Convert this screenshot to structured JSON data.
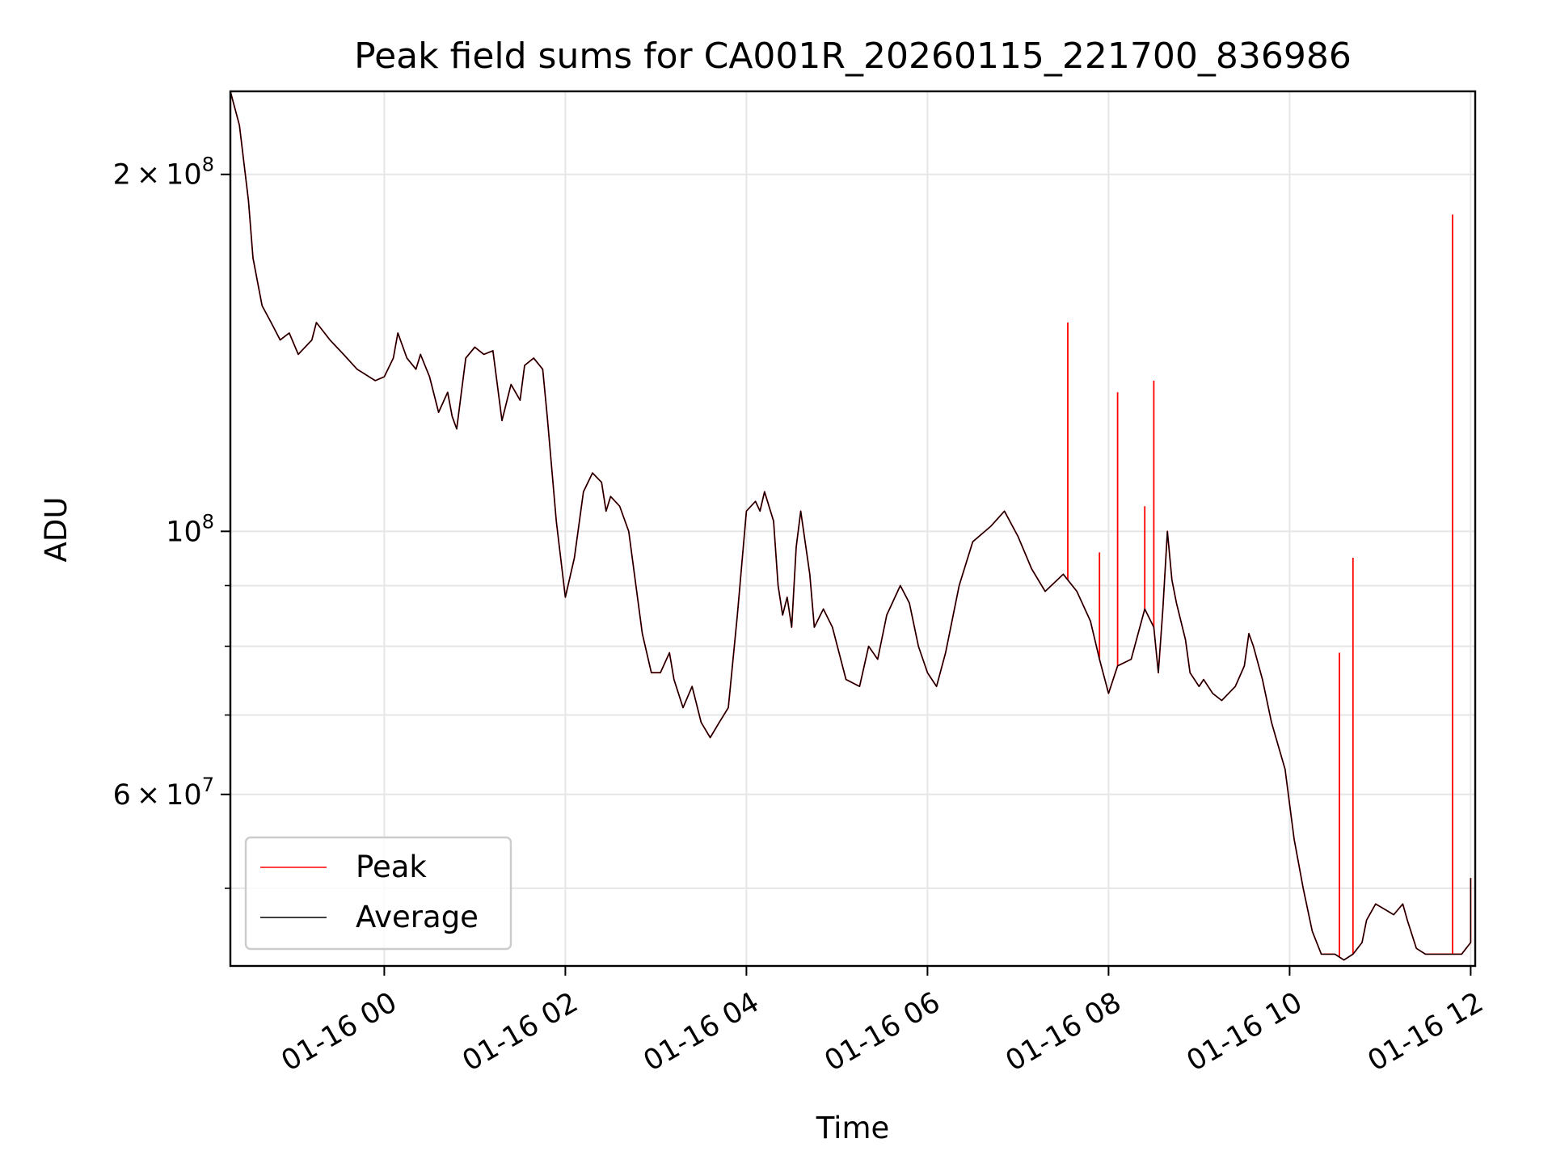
{
  "chart_data": {
    "type": "line",
    "title": "Peak field sums for CA001R_20260115_221700_836986",
    "xlabel": "Time",
    "ylabel": "ADU",
    "yscale": "log",
    "ylim": [
      43000000,
      235000000
    ],
    "xlim_hours": [
      -1.7,
      12.05
    ],
    "grid": true,
    "legend_position": "lower-left",
    "x_ticks": [
      {
        "label": "01-16 00",
        "hour": 0
      },
      {
        "label": "01-16 02",
        "hour": 2
      },
      {
        "label": "01-16 04",
        "hour": 4
      },
      {
        "label": "01-16 06",
        "hour": 6
      },
      {
        "label": "01-16 08",
        "hour": 8
      },
      {
        "label": "01-16 10",
        "hour": 10
      },
      {
        "label": "01-16 12",
        "hour": 12
      }
    ],
    "y_major_ticks": [
      {
        "base": "2",
        "exp": "8",
        "value": 200000000
      },
      {
        "base": "10",
        "exp": "8",
        "value": 100000000,
        "plain": true
      },
      {
        "base": "6",
        "exp": "7",
        "value": 60000000
      }
    ],
    "y_minor_values": [
      50000000,
      70000000,
      80000000,
      90000000
    ],
    "times_symbol": "×",
    "series": [
      {
        "name": "Average",
        "color": "#000000",
        "points": [
          [
            -1.7,
            235000000
          ],
          [
            -1.6,
            220000000
          ],
          [
            -1.5,
            190000000
          ],
          [
            -1.45,
            170000000
          ],
          [
            -1.35,
            155000000
          ],
          [
            -1.25,
            150000000
          ],
          [
            -1.15,
            145000000
          ],
          [
            -1.05,
            147000000
          ],
          [
            -0.95,
            141000000
          ],
          [
            -0.8,
            145000000
          ],
          [
            -0.75,
            150000000
          ],
          [
            -0.6,
            145000000
          ],
          [
            -0.45,
            141000000
          ],
          [
            -0.3,
            137000000
          ],
          [
            -0.1,
            134000000
          ],
          [
            0.0,
            135000000
          ],
          [
            0.1,
            140000000
          ],
          [
            0.15,
            147000000
          ],
          [
            0.25,
            140000000
          ],
          [
            0.35,
            137000000
          ],
          [
            0.4,
            141000000
          ],
          [
            0.5,
            135000000
          ],
          [
            0.6,
            126000000
          ],
          [
            0.7,
            131000000
          ],
          [
            0.75,
            125000000
          ],
          [
            0.8,
            122000000
          ],
          [
            0.9,
            140000000
          ],
          [
            1.0,
            143000000
          ],
          [
            1.1,
            141000000
          ],
          [
            1.2,
            142000000
          ],
          [
            1.3,
            124000000
          ],
          [
            1.4,
            133000000
          ],
          [
            1.5,
            129000000
          ],
          [
            1.55,
            138000000
          ],
          [
            1.65,
            140000000
          ],
          [
            1.75,
            137000000
          ],
          [
            1.8,
            125000000
          ],
          [
            1.9,
            102000000
          ],
          [
            2.0,
            88000000
          ],
          [
            2.1,
            95000000
          ],
          [
            2.2,
            108000000
          ],
          [
            2.3,
            112000000
          ],
          [
            2.4,
            110000000
          ],
          [
            2.45,
            104000000
          ],
          [
            2.5,
            107000000
          ],
          [
            2.6,
            105000000
          ],
          [
            2.7,
            100000000
          ],
          [
            2.85,
            82000000
          ],
          [
            2.95,
            76000000
          ],
          [
            3.05,
            76000000
          ],
          [
            3.15,
            79000000
          ],
          [
            3.2,
            75000000
          ],
          [
            3.3,
            71000000
          ],
          [
            3.4,
            74000000
          ],
          [
            3.5,
            69000000
          ],
          [
            3.6,
            67000000
          ],
          [
            3.7,
            69000000
          ],
          [
            3.8,
            71000000
          ],
          [
            3.9,
            85000000
          ],
          [
            4.0,
            104000000
          ],
          [
            4.1,
            106000000
          ],
          [
            4.15,
            104000000
          ],
          [
            4.2,
            108000000
          ],
          [
            4.3,
            102000000
          ],
          [
            4.35,
            90000000
          ],
          [
            4.4,
            85000000
          ],
          [
            4.45,
            88000000
          ],
          [
            4.5,
            83000000
          ],
          [
            4.55,
            97000000
          ],
          [
            4.6,
            104000000
          ],
          [
            4.7,
            92000000
          ],
          [
            4.75,
            83000000
          ],
          [
            4.85,
            86000000
          ],
          [
            4.95,
            83000000
          ],
          [
            5.1,
            75000000
          ],
          [
            5.25,
            74000000
          ],
          [
            5.35,
            80000000
          ],
          [
            5.45,
            78000000
          ],
          [
            5.55,
            85000000
          ],
          [
            5.7,
            90000000
          ],
          [
            5.8,
            87000000
          ],
          [
            5.9,
            80000000
          ],
          [
            6.0,
            76000000
          ],
          [
            6.1,
            74000000
          ],
          [
            6.2,
            79000000
          ],
          [
            6.35,
            90000000
          ],
          [
            6.5,
            98000000
          ],
          [
            6.7,
            101000000
          ],
          [
            6.85,
            104000000
          ],
          [
            7.0,
            99000000
          ],
          [
            7.15,
            93000000
          ],
          [
            7.3,
            89000000
          ],
          [
            7.5,
            92000000
          ],
          [
            7.65,
            89000000
          ],
          [
            7.8,
            84000000
          ],
          [
            7.9,
            78000000
          ],
          [
            8.0,
            73000000
          ],
          [
            8.1,
            77000000
          ],
          [
            8.25,
            78000000
          ],
          [
            8.4,
            86000000
          ],
          [
            8.5,
            83000000
          ],
          [
            8.55,
            76000000
          ],
          [
            8.6,
            86000000
          ],
          [
            8.65,
            100000000
          ],
          [
            8.7,
            91000000
          ],
          [
            8.75,
            87000000
          ],
          [
            8.85,
            81000000
          ],
          [
            8.9,
            76000000
          ],
          [
            9.0,
            74000000
          ],
          [
            9.05,
            75000000
          ],
          [
            9.15,
            73000000
          ],
          [
            9.25,
            72000000
          ],
          [
            9.4,
            74000000
          ],
          [
            9.5,
            77000000
          ],
          [
            9.55,
            82000000
          ],
          [
            9.6,
            80000000
          ],
          [
            9.7,
            75000000
          ],
          [
            9.8,
            69000000
          ],
          [
            9.95,
            63000000
          ],
          [
            10.05,
            55000000
          ],
          [
            10.15,
            50000000
          ],
          [
            10.25,
            46000000
          ],
          [
            10.35,
            44000000
          ],
          [
            10.5,
            44000000
          ],
          [
            10.6,
            43500000
          ],
          [
            10.7,
            44000000
          ],
          [
            10.8,
            45000000
          ],
          [
            10.85,
            47000000
          ],
          [
            10.95,
            48500000
          ],
          [
            11.05,
            48000000
          ],
          [
            11.15,
            47500000
          ],
          [
            11.25,
            48500000
          ],
          [
            11.3,
            47000000
          ],
          [
            11.4,
            44500000
          ],
          [
            11.5,
            44000000
          ],
          [
            11.7,
            44000000
          ],
          [
            11.9,
            44000000
          ],
          [
            11.95,
            44500000
          ],
          [
            12.0,
            45000000
          ],
          [
            12.0,
            51000000
          ]
        ]
      },
      {
        "name": "Peak",
        "color": "#ff0000",
        "spikes": [
          [
            7.55,
            150000000
          ],
          [
            7.9,
            96000000
          ],
          [
            8.1,
            131000000
          ],
          [
            8.4,
            105000000
          ],
          [
            8.5,
            134000000
          ],
          [
            10.55,
            79000000
          ],
          [
            10.7,
            95000000
          ],
          [
            11.8,
            185000000
          ]
        ]
      }
    ],
    "legend": [
      {
        "label": "Peak",
        "color": "#ff0000"
      },
      {
        "label": "Average",
        "color": "#000000"
      }
    ]
  }
}
